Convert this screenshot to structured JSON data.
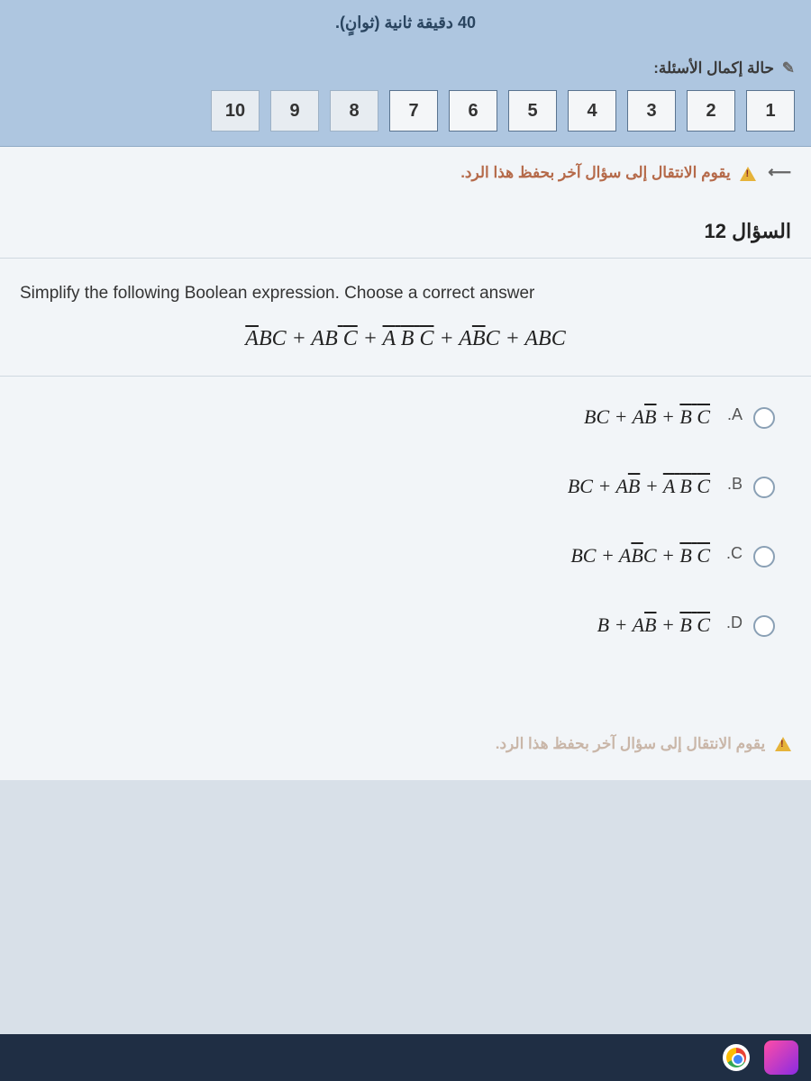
{
  "header": {
    "timer_fragment": "40 دقيقة ثانية (ثوانٍ).",
    "completion_label": "حالة إكمال الأسئلة:",
    "caret": "✎"
  },
  "nav": {
    "numbers": [
      "1",
      "2",
      "3",
      "4",
      "5",
      "6",
      "7",
      "8",
      "9",
      "10"
    ]
  },
  "warning": {
    "text": "يقوم الانتقال إلى سؤال آخر بحفظ هذا الرد.",
    "arrow": "⟵"
  },
  "question": {
    "title": "السؤال 12",
    "instruction": "Simplify the following Boolean expression. Choose a correct answer"
  },
  "expression_parts": {
    "t1a": "A",
    "t1b": "BC",
    "plus": "+",
    "t2a": "AB",
    "sp": " ",
    "t2b": "C",
    "t3a": "A",
    "t3b": "B",
    "t3c": "C",
    "t4a": "A",
    "t4b": "B",
    "t4c": "C",
    "t5": "ABC"
  },
  "answers": [
    {
      "label": ".A",
      "parts": {
        "a": "BC",
        "p": "+",
        "b": "A",
        "c": "B",
        "d": "B",
        "e": "C",
        "sp": " "
      }
    },
    {
      "label": ".B",
      "parts": {
        "a": "BC",
        "p": "+",
        "b": "A",
        "c": "B",
        "d": "A",
        "e": "B",
        "f": "C",
        "sp": " "
      }
    },
    {
      "label": ".C",
      "parts": {
        "a": "BC",
        "p": "+",
        "b": "A",
        "c": "B",
        "d": "C",
        "e": "B",
        "f": "C",
        "sp": " "
      }
    },
    {
      "label": ".D",
      "parts": {
        "a": "B",
        "p": "+",
        "b": "A",
        "c": "B",
        "d": "B",
        "e": "C",
        "sp": " "
      }
    }
  ],
  "bottom_warning": "يقوم الانتقال إلى سؤال آخر بحفظ هذا الرد."
}
